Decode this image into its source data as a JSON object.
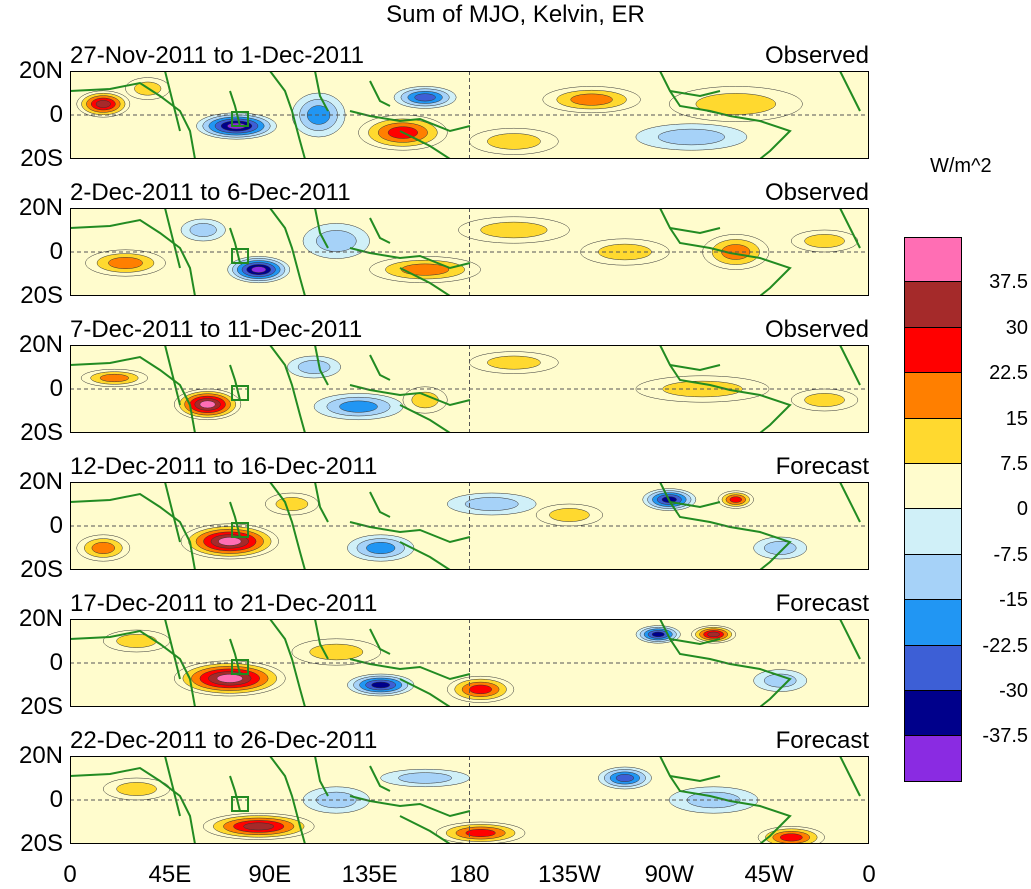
{
  "chart_data": {
    "type": "heatmap",
    "title": "Sum of MJO, Kelvin, ER",
    "units": "W/m^2",
    "x_ticks": [
      "0",
      "45E",
      "90E",
      "135E",
      "180",
      "135W",
      "90W",
      "45W",
      "0"
    ],
    "y_ticks": [
      "20N",
      "0",
      "20S"
    ],
    "xlim_lon": [
      0,
      360
    ],
    "ylim_lat": [
      -20,
      20
    ],
    "colorbar": {
      "levels": [
        "37.5",
        "30",
        "22.5",
        "15",
        "7.5",
        "0",
        "-7.5",
        "-15",
        "-22.5",
        "-30",
        "-37.5"
      ],
      "colors": [
        "#ff6eb4",
        "#a52a2a",
        "#ff0000",
        "#ff7f00",
        "#ffd92f",
        "#fffccd",
        "#d0f0f8",
        "#a6d2f8",
        "#2196f3",
        "#3d5fd6",
        "#00008b",
        "#8a2be2"
      ]
    },
    "panels": [
      {
        "period": "27-Nov-2011 to 1-Dec-2011",
        "kind": "Observed",
        "anomalies": [
          {
            "lon": 15,
            "lat": 5,
            "rx": 12,
            "ry": 6,
            "value": 32
          },
          {
            "lon": 75,
            "lat": -5,
            "rx": 18,
            "ry": 6,
            "value": -42
          },
          {
            "lon": 150,
            "lat": -8,
            "rx": 20,
            "ry": 8,
            "value": 28
          },
          {
            "lon": 235,
            "lat": 7,
            "rx": 22,
            "ry": 6,
            "value": 22
          },
          {
            "lon": 160,
            "lat": 8,
            "rx": 14,
            "ry": 5,
            "value": -30
          },
          {
            "lon": 35,
            "lat": 12,
            "rx": 10,
            "ry": 5,
            "value": 12
          },
          {
            "lon": 300,
            "lat": 5,
            "rx": 30,
            "ry": 8,
            "value": 9
          },
          {
            "lon": 112,
            "lat": 0,
            "rx": 12,
            "ry": 10,
            "value": -18
          },
          {
            "lon": 200,
            "lat": -12,
            "rx": 20,
            "ry": 6,
            "value": 10
          },
          {
            "lon": 280,
            "lat": -10,
            "rx": 25,
            "ry": 6,
            "value": -10
          }
        ]
      },
      {
        "period": "2-Dec-2011 to 6-Dec-2011",
        "kind": "Observed",
        "anomalies": [
          {
            "lon": 85,
            "lat": -8,
            "rx": 14,
            "ry": 6,
            "value": -38
          },
          {
            "lon": 25,
            "lat": -5,
            "rx": 18,
            "ry": 6,
            "value": 16
          },
          {
            "lon": 160,
            "lat": -8,
            "rx": 25,
            "ry": 6,
            "value": 18
          },
          {
            "lon": 200,
            "lat": 10,
            "rx": 25,
            "ry": 6,
            "value": 10
          },
          {
            "lon": 250,
            "lat": 0,
            "rx": 20,
            "ry": 6,
            "value": 12
          },
          {
            "lon": 300,
            "lat": 0,
            "rx": 15,
            "ry": 8,
            "value": 16
          },
          {
            "lon": 120,
            "lat": 5,
            "rx": 15,
            "ry": 8,
            "value": -15
          },
          {
            "lon": 60,
            "lat": 10,
            "rx": 10,
            "ry": 5,
            "value": -12
          },
          {
            "lon": 340,
            "lat": 5,
            "rx": 15,
            "ry": 5,
            "value": 10
          }
        ]
      },
      {
        "period": "7-Dec-2011 to 11-Dec-2011",
        "kind": "Observed",
        "anomalies": [
          {
            "lon": 62,
            "lat": -7,
            "rx": 15,
            "ry": 7,
            "value": 40
          },
          {
            "lon": 20,
            "lat": 5,
            "rx": 15,
            "ry": 4,
            "value": 16
          },
          {
            "lon": 130,
            "lat": -8,
            "rx": 20,
            "ry": 6,
            "value": -20
          },
          {
            "lon": 200,
            "lat": 12,
            "rx": 20,
            "ry": 5,
            "value": 12
          },
          {
            "lon": 285,
            "lat": 0,
            "rx": 30,
            "ry": 6,
            "value": 10
          },
          {
            "lon": 110,
            "lat": 10,
            "rx": 12,
            "ry": 5,
            "value": -14
          },
          {
            "lon": 160,
            "lat": -5,
            "rx": 10,
            "ry": 6,
            "value": 10
          },
          {
            "lon": 340,
            "lat": -5,
            "rx": 15,
            "ry": 5,
            "value": 8
          }
        ]
      },
      {
        "period": "12-Dec-2011 to 16-Dec-2011",
        "kind": "Forecast",
        "anomalies": [
          {
            "lon": 72,
            "lat": -7,
            "rx": 22,
            "ry": 8,
            "value": 42
          },
          {
            "lon": 15,
            "lat": -10,
            "rx": 12,
            "ry": 6,
            "value": 16
          },
          {
            "lon": 270,
            "lat": 12,
            "rx": 12,
            "ry": 5,
            "value": -35
          },
          {
            "lon": 300,
            "lat": 12,
            "rx": 8,
            "ry": 4,
            "value": 25
          },
          {
            "lon": 140,
            "lat": -10,
            "rx": 15,
            "ry": 6,
            "value": -20
          },
          {
            "lon": 190,
            "lat": 10,
            "rx": 20,
            "ry": 5,
            "value": -14
          },
          {
            "lon": 225,
            "lat": 5,
            "rx": 15,
            "ry": 5,
            "value": 12
          },
          {
            "lon": 320,
            "lat": -10,
            "rx": 12,
            "ry": 5,
            "value": -15
          },
          {
            "lon": 100,
            "lat": 10,
            "rx": 12,
            "ry": 5,
            "value": 10
          }
        ]
      },
      {
        "period": "17-Dec-2011 to 21-Dec-2011",
        "kind": "Forecast",
        "anomalies": [
          {
            "lon": 72,
            "lat": -7,
            "rx": 25,
            "ry": 8,
            "value": 42
          },
          {
            "lon": 140,
            "lat": -10,
            "rx": 15,
            "ry": 5,
            "value": -35
          },
          {
            "lon": 185,
            "lat": -12,
            "rx": 15,
            "ry": 6,
            "value": 28
          },
          {
            "lon": 265,
            "lat": 13,
            "rx": 10,
            "ry": 4,
            "value": -35
          },
          {
            "lon": 290,
            "lat": 13,
            "rx": 10,
            "ry": 4,
            "value": 32
          },
          {
            "lon": 30,
            "lat": 10,
            "rx": 15,
            "ry": 5,
            "value": 12
          },
          {
            "lon": 120,
            "lat": 5,
            "rx": 20,
            "ry": 6,
            "value": 10
          },
          {
            "lon": 320,
            "lat": -8,
            "rx": 12,
            "ry": 5,
            "value": -15
          }
        ]
      },
      {
        "period": "22-Dec-2011 to 26-Dec-2011",
        "kind": "Forecast",
        "anomalies": [
          {
            "lon": 85,
            "lat": -12,
            "rx": 25,
            "ry": 6,
            "value": 32
          },
          {
            "lon": 185,
            "lat": -15,
            "rx": 20,
            "ry": 5,
            "value": 24
          },
          {
            "lon": 250,
            "lat": 10,
            "rx": 12,
            "ry": 5,
            "value": -24
          },
          {
            "lon": 325,
            "lat": -17,
            "rx": 15,
            "ry": 5,
            "value": 24
          },
          {
            "lon": 30,
            "lat": 5,
            "rx": 15,
            "ry": 5,
            "value": 10
          },
          {
            "lon": 120,
            "lat": 0,
            "rx": 15,
            "ry": 6,
            "value": -12
          },
          {
            "lon": 160,
            "lat": 10,
            "rx": 20,
            "ry": 4,
            "value": -10
          },
          {
            "lon": 290,
            "lat": 0,
            "rx": 20,
            "ry": 6,
            "value": -10
          }
        ]
      }
    ]
  }
}
